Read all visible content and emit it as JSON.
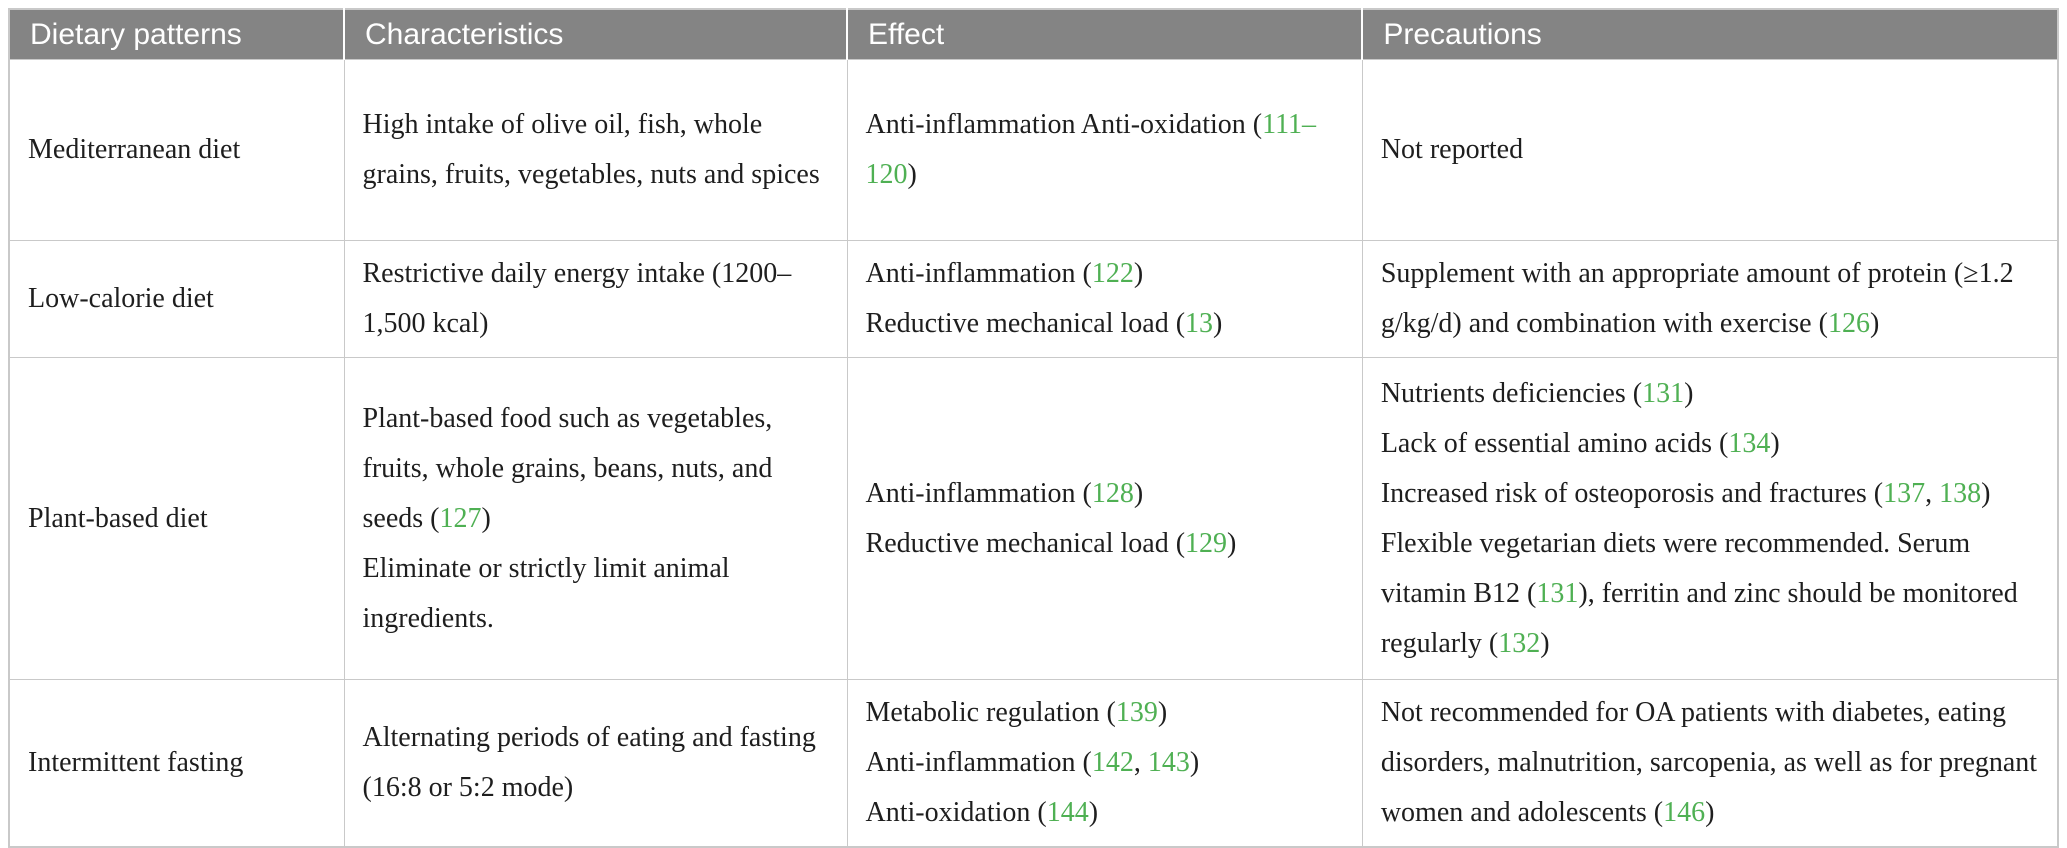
{
  "colors": {
    "header_bg": "#848484",
    "header_text": "#ffffff",
    "body_text": "#1e1e1e",
    "citation_green": "#4fb053",
    "border": "#c9c9c9"
  },
  "header": {
    "columns": [
      "Dietary patterns",
      "Characteristics",
      "Effect",
      "Precautions"
    ]
  },
  "rows": [
    {
      "pattern": [
        [
          {
            "t": "Mediterranean diet"
          }
        ]
      ],
      "characteristics": [
        [
          {
            "t": "High intake of olive oil, fish, whole grains, fruits, vegetables, nuts and spices"
          }
        ]
      ],
      "effect": [
        [
          {
            "t": "Anti-inflammation Anti-oxidation ("
          },
          {
            "t": "111–120",
            "c": true
          },
          {
            "t": ")"
          }
        ]
      ],
      "precautions": [
        [
          {
            "t": "Not reported"
          }
        ]
      ]
    },
    {
      "pattern": [
        [
          {
            "t": "Low-calorie diet"
          }
        ]
      ],
      "characteristics": [
        [
          {
            "t": "Restrictive daily energy intake (1200–1,500 kcal)"
          }
        ]
      ],
      "effect": [
        [
          {
            "t": "Anti-inflammation ("
          },
          {
            "t": "122",
            "c": true
          },
          {
            "t": ")"
          }
        ],
        [
          {
            "t": "Reductive mechanical load ("
          },
          {
            "t": "13",
            "c": true
          },
          {
            "t": ")"
          }
        ]
      ],
      "precautions": [
        [
          {
            "t": "Supplement with an appropriate amount of protein (≥1.2 g/kg/d) and combination with exercise ("
          },
          {
            "t": "126",
            "c": true
          },
          {
            "t": ")"
          }
        ]
      ]
    },
    {
      "pattern": [
        [
          {
            "t": "Plant-based diet"
          }
        ]
      ],
      "characteristics": [
        [
          {
            "t": "Plant-based food such as vegetables, fruits, whole grains, beans, nuts, and seeds ("
          },
          {
            "t": "127",
            "c": true
          },
          {
            "t": ")"
          }
        ],
        [
          {
            "t": "Eliminate or strictly limit animal ingredients."
          }
        ]
      ],
      "effect": [
        [
          {
            "t": "Anti-inflammation ("
          },
          {
            "t": "128",
            "c": true
          },
          {
            "t": ")"
          }
        ],
        [
          {
            "t": "Reductive mechanical load ("
          },
          {
            "t": "129",
            "c": true
          },
          {
            "t": ")"
          }
        ]
      ],
      "precautions": [
        [
          {
            "t": "Nutrients deficiencies ("
          },
          {
            "t": "131",
            "c": true
          },
          {
            "t": ")"
          }
        ],
        [
          {
            "t": "Lack of essential amino acids ("
          },
          {
            "t": "134",
            "c": true
          },
          {
            "t": ")"
          }
        ],
        [
          {
            "t": "Increased risk of osteoporosis and fractures ("
          },
          {
            "t": "137",
            "c": true
          },
          {
            "t": ", "
          },
          {
            "t": "138",
            "c": true
          },
          {
            "t": ")"
          }
        ],
        [
          {
            "t": "Flexible vegetarian diets were recommended. Serum vitamin B12 ("
          },
          {
            "t": "131",
            "c": true
          },
          {
            "t": "), ferritin and zinc should be monitored regularly ("
          },
          {
            "t": "132",
            "c": true
          },
          {
            "t": ")"
          }
        ]
      ]
    },
    {
      "pattern": [
        [
          {
            "t": "Intermittent fasting"
          }
        ]
      ],
      "characteristics": [
        [
          {
            "t": "Alternating periods of eating and fasting (16:8 or 5:2 mode)"
          }
        ]
      ],
      "effect": [
        [
          {
            "t": "Metabolic regulation ("
          },
          {
            "t": "139",
            "c": true
          },
          {
            "t": ")"
          }
        ],
        [
          {
            "t": "Anti-inflammation ("
          },
          {
            "t": "142",
            "c": true
          },
          {
            "t": ", "
          },
          {
            "t": "143",
            "c": true
          },
          {
            "t": ")"
          }
        ],
        [
          {
            "t": "Anti-oxidation ("
          },
          {
            "t": "144",
            "c": true
          },
          {
            "t": ")"
          }
        ]
      ],
      "precautions": [
        [
          {
            "t": "Not recommended for OA patients with diabetes, eating disorders, malnutrition, sarcopenia, as well as for pregnant women and adolescents ("
          },
          {
            "t": "146",
            "c": true
          },
          {
            "t": ")"
          }
        ]
      ]
    }
  ]
}
